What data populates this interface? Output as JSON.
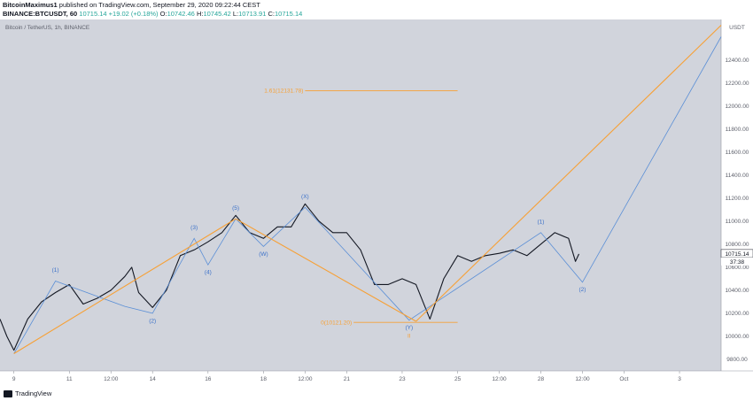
{
  "header": {
    "publisher": "BitcoinMaximus1",
    "published_text": "published on TradingView.com, September 29, 2020 09:22:44 CEST",
    "symbol": "BINANCE:BTCUSDT, 60",
    "last_price": "10715.14",
    "change": "+19.02 (+0.18%)",
    "o_label": "O:",
    "o_value": "10742.46",
    "h_label": "H:",
    "h_value": "10745.42",
    "l_label": "L:",
    "l_value": "10713.91",
    "c_label": "C:",
    "c_value": "10715.14"
  },
  "footer": {
    "logo_text": "TradingView"
  },
  "chart_data": {
    "type": "line",
    "title": "Bitcoin / TetherUS, 1h, BINANCE",
    "currency": "USDT",
    "ylim": [
      9700,
      12750
    ],
    "y_ticks": [
      9800,
      10000,
      10200,
      10400,
      10600,
      10800,
      11000,
      11200,
      11400,
      11600,
      11800,
      12000,
      12200,
      12400
    ],
    "y_tick_labels": [
      "9800.00",
      "10000.00",
      "10200.00",
      "10400.00",
      "10600.00",
      "10800.00",
      "11000.00",
      "11200.00",
      "11400.00",
      "11600.00",
      "11800.00",
      "12000.00",
      "12200.00",
      "12400.00"
    ],
    "x_range": [
      "2020-09-08 12:00",
      "2020-10-04 12:00"
    ],
    "x_ticks": [
      {
        "t": "2020-09-09 00:00",
        "label": "9"
      },
      {
        "t": "2020-09-11 00:00",
        "label": "11"
      },
      {
        "t": "2020-09-12 12:00",
        "label": "12:00"
      },
      {
        "t": "2020-09-14 00:00",
        "label": "14"
      },
      {
        "t": "2020-09-16 00:00",
        "label": "16"
      },
      {
        "t": "2020-09-18 00:00",
        "label": "18"
      },
      {
        "t": "2020-09-19 12:00",
        "label": "12:00"
      },
      {
        "t": "2020-09-21 00:00",
        "label": "21"
      },
      {
        "t": "2020-09-23 00:00",
        "label": "23"
      },
      {
        "t": "2020-09-25 00:00",
        "label": "25"
      },
      {
        "t": "2020-09-26 12:00",
        "label": "12:00"
      },
      {
        "t": "2020-09-28 00:00",
        "label": "28"
      },
      {
        "t": "2020-09-29 12:00",
        "label": "12:00"
      },
      {
        "t": "2020-10-01 00:00",
        "label": "Oct"
      },
      {
        "t": "2020-10-03 00:00",
        "label": "3"
      }
    ],
    "price_path": [
      [
        "2020-09-08 12:00",
        10150
      ],
      [
        "2020-09-08 18:00",
        10000
      ],
      [
        "2020-09-09 00:00",
        9880
      ],
      [
        "2020-09-09 12:00",
        10150
      ],
      [
        "2020-09-10 00:00",
        10300
      ],
      [
        "2020-09-10 12:00",
        10380
      ],
      [
        "2020-09-11 00:00",
        10450
      ],
      [
        "2020-09-11 12:00",
        10280
      ],
      [
        "2020-09-12 00:00",
        10330
      ],
      [
        "2020-09-12 12:00",
        10400
      ],
      [
        "2020-09-13 00:00",
        10520
      ],
      [
        "2020-09-13 06:00",
        10600
      ],
      [
        "2020-09-13 12:00",
        10380
      ],
      [
        "2020-09-14 00:00",
        10250
      ],
      [
        "2020-09-14 12:00",
        10400
      ],
      [
        "2020-09-15 00:00",
        10700
      ],
      [
        "2020-09-15 12:00",
        10750
      ],
      [
        "2020-09-16 00:00",
        10820
      ],
      [
        "2020-09-16 12:00",
        10900
      ],
      [
        "2020-09-17 00:00",
        11050
      ],
      [
        "2020-09-17 12:00",
        10900
      ],
      [
        "2020-09-18 00:00",
        10850
      ],
      [
        "2020-09-18 12:00",
        10950
      ],
      [
        "2020-09-19 00:00",
        10950
      ],
      [
        "2020-09-19 12:00",
        11150
      ],
      [
        "2020-09-20 00:00",
        11000
      ],
      [
        "2020-09-20 12:00",
        10900
      ],
      [
        "2020-09-21 00:00",
        10900
      ],
      [
        "2020-09-21 12:00",
        10750
      ],
      [
        "2020-09-22 00:00",
        10450
      ],
      [
        "2020-09-22 12:00",
        10450
      ],
      [
        "2020-09-23 00:00",
        10500
      ],
      [
        "2020-09-23 12:00",
        10450
      ],
      [
        "2020-09-24 00:00",
        10150
      ],
      [
        "2020-09-24 12:00",
        10500
      ],
      [
        "2020-09-25 00:00",
        10700
      ],
      [
        "2020-09-25 12:00",
        10650
      ],
      [
        "2020-09-26 00:00",
        10700
      ],
      [
        "2020-09-26 12:00",
        10720
      ],
      [
        "2020-09-27 00:00",
        10750
      ],
      [
        "2020-09-27 12:00",
        10700
      ],
      [
        "2020-09-28 00:00",
        10800
      ],
      [
        "2020-09-28 12:00",
        10900
      ],
      [
        "2020-09-29 00:00",
        10850
      ],
      [
        "2020-09-29 06:00",
        10650
      ],
      [
        "2020-09-29 09:00",
        10715.14
      ]
    ],
    "wave_path": [
      [
        "2020-09-09 00:00",
        9850
      ],
      [
        "2020-09-10 12:00",
        10480
      ],
      [
        "2020-09-13 00:00",
        10260
      ],
      [
        "2020-09-14 00:00",
        10200
      ],
      [
        "2020-09-15 12:00",
        10850
      ],
      [
        "2020-09-16 00:00",
        10620
      ],
      [
        "2020-09-17 00:00",
        11020
      ],
      [
        "2020-09-18 00:00",
        10780
      ],
      [
        "2020-09-19 12:00",
        11120
      ],
      [
        "2020-09-23 06:00",
        10140
      ],
      [
        "2020-09-28 00:00",
        10900
      ],
      [
        "2020-09-29 12:00",
        10470
      ],
      [
        "2020-10-04 12:00",
        12600
      ]
    ],
    "orange_lines": [
      {
        "from": [
          "2020-09-09 00:00",
          9850
        ],
        "to": [
          "2020-09-17 00:00",
          11020
        ]
      },
      {
        "from": [
          "2020-09-17 00:00",
          11020
        ],
        "to": [
          "2020-09-23 12:00",
          10130
        ]
      },
      {
        "from": [
          "2020-09-23 12:00",
          10130
        ],
        "to": [
          "2020-10-04 12:00",
          12700
        ]
      }
    ],
    "fib_levels": [
      {
        "label": "1.61(12131.78)",
        "value": 12131.78,
        "from": "2020-09-19 12:00",
        "to": "2020-09-25 00:00"
      },
      {
        "label": "0(10121.20)",
        "value": 10121.2,
        "from": "2020-09-21 06:00",
        "to": "2020-09-25 00:00"
      }
    ],
    "wave_labels": [
      {
        "text": "(1)",
        "t": "2020-09-10 12:00",
        "v": 10560
      },
      {
        "text": "(2)",
        "t": "2020-09-14 00:00",
        "v": 10120
      },
      {
        "text": "(3)",
        "t": "2020-09-15 12:00",
        "v": 10930
      },
      {
        "text": "(4)",
        "t": "2020-09-16 00:00",
        "v": 10540
      },
      {
        "text": "(5)",
        "t": "2020-09-17 00:00",
        "v": 11100
      },
      {
        "text": "(W)",
        "t": "2020-09-18 00:00",
        "v": 10700
      },
      {
        "text": "(X)",
        "t": "2020-09-19 12:00",
        "v": 11200
      },
      {
        "text": "(Y)",
        "t": "2020-09-23 06:00",
        "v": 10060
      },
      {
        "text": "(1)",
        "t": "2020-09-28 00:00",
        "v": 10980
      },
      {
        "text": "(2)",
        "t": "2020-09-29 12:00",
        "v": 10390
      }
    ],
    "other_marks": [
      {
        "text": "II",
        "t": "2020-09-23 06:00",
        "v": 9990
      }
    ],
    "last_price_tag": "10715.14",
    "countdown_tag": "37:38"
  }
}
